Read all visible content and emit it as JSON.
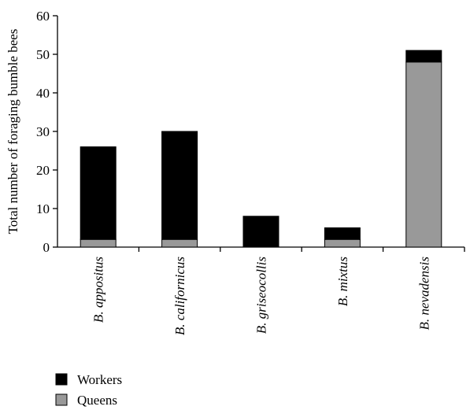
{
  "chart_data": {
    "type": "bar",
    "stacked": true,
    "title": "",
    "xlabel": "",
    "ylabel": "Total number of foraging bumble bees",
    "ylim": [
      0,
      60
    ],
    "yticks": [
      0,
      10,
      20,
      30,
      40,
      50,
      60
    ],
    "categories": [
      "B. appositus",
      "B. californicus",
      "B. griseocollis",
      "B. mixtus",
      "B. nevadensis"
    ],
    "series": [
      {
        "name": "Queens",
        "color": "#999999",
        "values": [
          2,
          2,
          0,
          2,
          48
        ]
      },
      {
        "name": "Workers",
        "color": "#000000",
        "values": [
          24,
          28,
          8,
          3,
          3
        ]
      }
    ],
    "legend": {
      "position": "bottom-left",
      "entries": [
        {
          "label": "Workers",
          "color": "#000000"
        },
        {
          "label": "Queens",
          "color": "#999999"
        }
      ]
    },
    "grid": false
  }
}
